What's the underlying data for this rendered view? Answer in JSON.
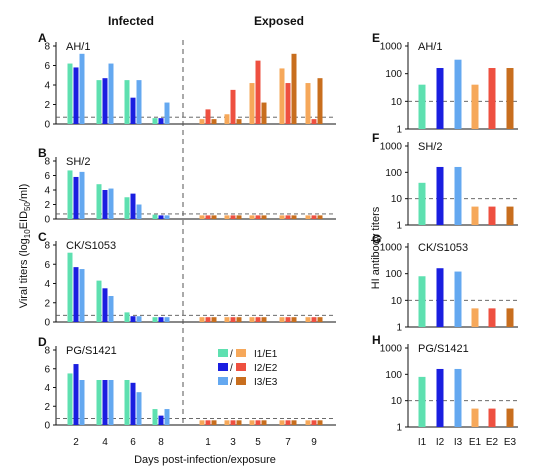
{
  "headers": {
    "infected": "Infected",
    "exposed": "Exposed"
  },
  "left_ylabel_main": "Viral titers (log",
  "left_ylabel_sub": "10",
  "left_ylabel_end": "EID",
  "left_ylabel_sub2": "50",
  "left_ylabel_tail": "/ml)",
  "right_ylabel": "HI antibody titers",
  "xlabel_left": "Days post-infection/exposure",
  "legend": [
    {
      "left": "I1",
      "right": "E1",
      "lc": "#5ee0b0",
      "rc": "#f6a85a"
    },
    {
      "left": "I2",
      "right": "E2",
      "lc": "#1a1ee0",
      "rc": "#ee5040"
    },
    {
      "left": "I3",
      "right": "E3",
      "lc": "#64a8f0",
      "rc": "#c86e1e"
    }
  ],
  "colors": {
    "I1": "#5ee0b0",
    "I2": "#1a1ee0",
    "I3": "#64a8f0",
    "E1": "#f6a85a",
    "E2": "#ee5040",
    "E3": "#c86e1e"
  },
  "chart_data": [
    {
      "type": "bar",
      "panel": "A",
      "title": "AH/1",
      "ylim": [
        0,
        8
      ],
      "yticks": [
        0,
        2,
        4,
        6,
        8
      ],
      "dashed_threshold": 0.7,
      "infected": {
        "x": [
          2,
          4,
          6,
          8
        ],
        "I1": [
          6.2,
          4.5,
          4.5,
          0.6
        ],
        "I2": [
          5.8,
          4.7,
          2.7,
          0.6
        ],
        "I3": [
          7.2,
          6.2,
          4.5,
          2.2
        ]
      },
      "exposed": {
        "x": [
          1,
          3,
          5,
          7,
          9
        ],
        "E1": [
          0.5,
          1.0,
          4.2,
          5.7,
          4.2
        ],
        "E2": [
          1.5,
          3.5,
          6.5,
          4.2,
          0.5
        ],
        "E3": [
          0.5,
          0.5,
          2.2,
          7.2,
          4.7
        ]
      }
    },
    {
      "type": "bar",
      "panel": "B",
      "title": "SH/2",
      "ylim": [
        0,
        8
      ],
      "yticks": [
        0,
        2,
        4,
        6,
        8
      ],
      "dashed_threshold": 0.7,
      "infected": {
        "x": [
          2,
          4,
          6,
          8
        ],
        "I1": [
          6.7,
          4.8,
          3.0,
          0.6
        ],
        "I2": [
          5.8,
          4.0,
          3.5,
          0.5
        ],
        "I3": [
          6.5,
          4.2,
          2.0,
          0.5
        ]
      },
      "exposed": {
        "x": [
          1,
          3,
          5,
          7,
          9
        ],
        "E1": [
          0.5,
          0.5,
          0.5,
          0.5,
          0.5
        ],
        "E2": [
          0.5,
          0.5,
          0.5,
          0.5,
          0.5
        ],
        "E3": [
          0.5,
          0.5,
          0.5,
          0.5,
          0.5
        ]
      }
    },
    {
      "type": "bar",
      "panel": "C",
      "title": "CK/S1053",
      "ylim": [
        0,
        8
      ],
      "yticks": [
        0,
        2,
        4,
        6,
        8
      ],
      "dashed_threshold": 0.7,
      "infected": {
        "x": [
          2,
          4,
          6,
          8
        ],
        "I1": [
          7.2,
          4.3,
          1.0,
          0.5
        ],
        "I2": [
          5.7,
          3.5,
          0.6,
          0.5
        ],
        "I3": [
          5.5,
          2.7,
          0.6,
          0.5
        ]
      },
      "exposed": {
        "x": [
          1,
          3,
          5,
          7,
          9
        ],
        "E1": [
          0.5,
          0.5,
          0.5,
          0.5,
          0.5
        ],
        "E2": [
          0.5,
          0.5,
          0.5,
          0.5,
          0.5
        ],
        "E3": [
          0.5,
          0.5,
          0.5,
          0.5,
          0.5
        ]
      }
    },
    {
      "type": "bar",
      "panel": "D",
      "title": "PG/S1421",
      "ylim": [
        0,
        8
      ],
      "yticks": [
        0,
        2,
        4,
        6,
        8
      ],
      "dashed_threshold": 0.7,
      "infected": {
        "x": [
          2,
          4,
          6,
          8
        ],
        "I1": [
          5.5,
          4.8,
          4.8,
          1.7
        ],
        "I2": [
          6.5,
          4.8,
          4.5,
          1.0
        ],
        "I3": [
          4.8,
          4.8,
          3.5,
          1.7
        ]
      },
      "exposed": {
        "x": [
          1,
          3,
          5,
          7,
          9
        ],
        "E1": [
          0.5,
          0.5,
          0.5,
          0.5,
          0.5
        ],
        "E2": [
          0.5,
          0.5,
          0.5,
          0.5,
          0.5
        ],
        "E3": [
          0.5,
          0.5,
          0.5,
          0.5,
          0.5
        ]
      }
    },
    {
      "type": "bar",
      "panel": "E",
      "title": "AH/1",
      "scale": "log",
      "ylim": [
        1,
        1000
      ],
      "yticks": [
        1,
        10,
        100,
        1000
      ],
      "dashed_threshold": 10,
      "categories": [
        "I1",
        "I2",
        "I3",
        "E1",
        "E2",
        "E3"
      ],
      "values": [
        40,
        160,
        320,
        40,
        160,
        160
      ]
    },
    {
      "type": "bar",
      "panel": "F",
      "title": "SH/2",
      "scale": "log",
      "ylim": [
        1,
        1000
      ],
      "yticks": [
        1,
        10,
        100,
        1000
      ],
      "dashed_threshold": 10,
      "categories": [
        "I1",
        "I2",
        "I3",
        "E1",
        "E2",
        "E3"
      ],
      "values": [
        40,
        160,
        160,
        5,
        5,
        5
      ]
    },
    {
      "type": "bar",
      "panel": "G",
      "title": "CK/S1053",
      "scale": "log",
      "ylim": [
        1,
        1000
      ],
      "yticks": [
        1,
        10,
        100,
        1000
      ],
      "dashed_threshold": 10,
      "categories": [
        "I1",
        "I2",
        "I3",
        "E1",
        "E2",
        "E3"
      ],
      "values": [
        80,
        160,
        120,
        5,
        5,
        5
      ]
    },
    {
      "type": "bar",
      "panel": "H",
      "title": "PG/S1421",
      "scale": "log",
      "ylim": [
        1,
        1000
      ],
      "yticks": [
        1,
        10,
        100,
        1000
      ],
      "dashed_threshold": 10,
      "categories": [
        "I1",
        "I2",
        "I3",
        "E1",
        "E2",
        "E3"
      ],
      "values": [
        80,
        160,
        160,
        5,
        5,
        5
      ]
    }
  ]
}
